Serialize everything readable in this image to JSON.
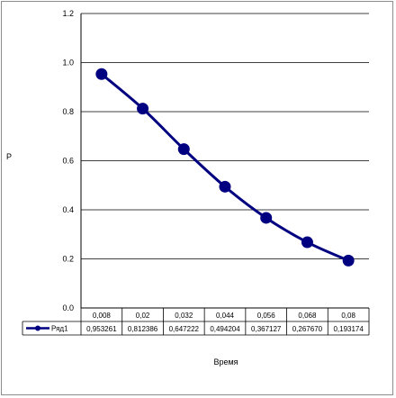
{
  "chart_data": {
    "type": "line",
    "title": "",
    "ylabel": "P",
    "xlabel": "Время",
    "ylim": [
      0,
      1.2
    ],
    "ytick_labels": [
      "0.0",
      "0.2",
      "0.4",
      "0.6",
      "0.8",
      "1.0",
      "1.2"
    ],
    "ytick_values": [
      0,
      0.2,
      0.4,
      0.6,
      0.8,
      1.0,
      1.2
    ],
    "categories": [
      "0,008",
      "0,02",
      "0,032",
      "0,044",
      "0,056",
      "0,068",
      "0,08"
    ],
    "series": [
      {
        "name": "Ряд1",
        "values": [
          0.953261,
          0.812386,
          0.647222,
          0.494204,
          0.367127,
          0.26767,
          0.193174
        ],
        "value_labels": [
          "0,953261",
          "0,812386",
          "0,647222",
          "0,494204",
          "0,367127",
          "0,267670",
          "0,193174"
        ],
        "color": "#000080"
      }
    ],
    "grid": "horizontal",
    "legend": "data-table"
  }
}
